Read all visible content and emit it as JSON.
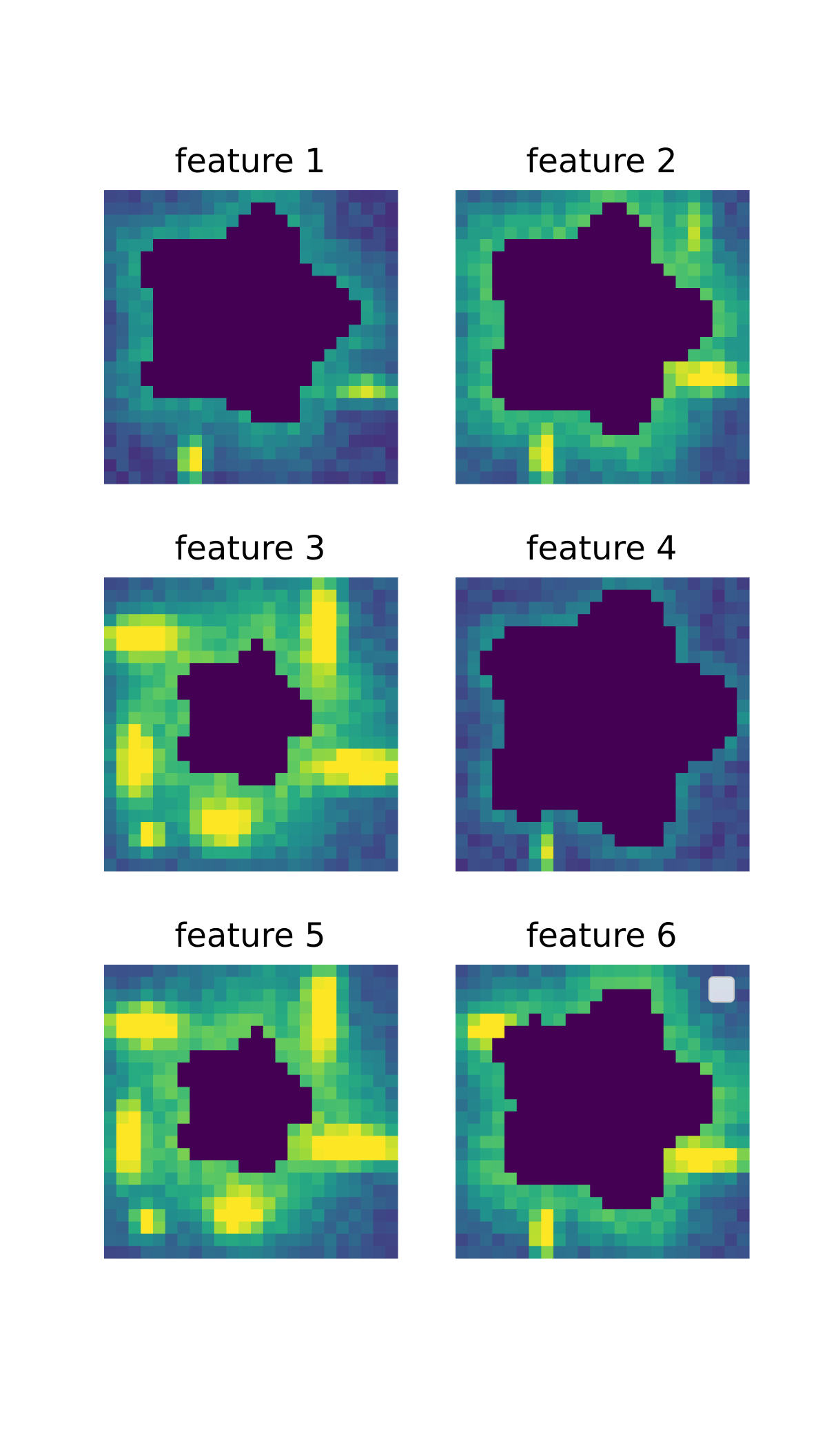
{
  "chart_data": {
    "type": "heatmap",
    "colormap": "viridis",
    "grid_size": 24,
    "legend_placement": "upper right of feature 6",
    "legend_entries": [],
    "panels": [
      {
        "title": "feature 1"
      },
      {
        "title": "feature 2"
      },
      {
        "title": "feature 3"
      },
      {
        "title": "feature 4"
      },
      {
        "title": "feature 5"
      },
      {
        "title": "feature 6"
      }
    ]
  }
}
